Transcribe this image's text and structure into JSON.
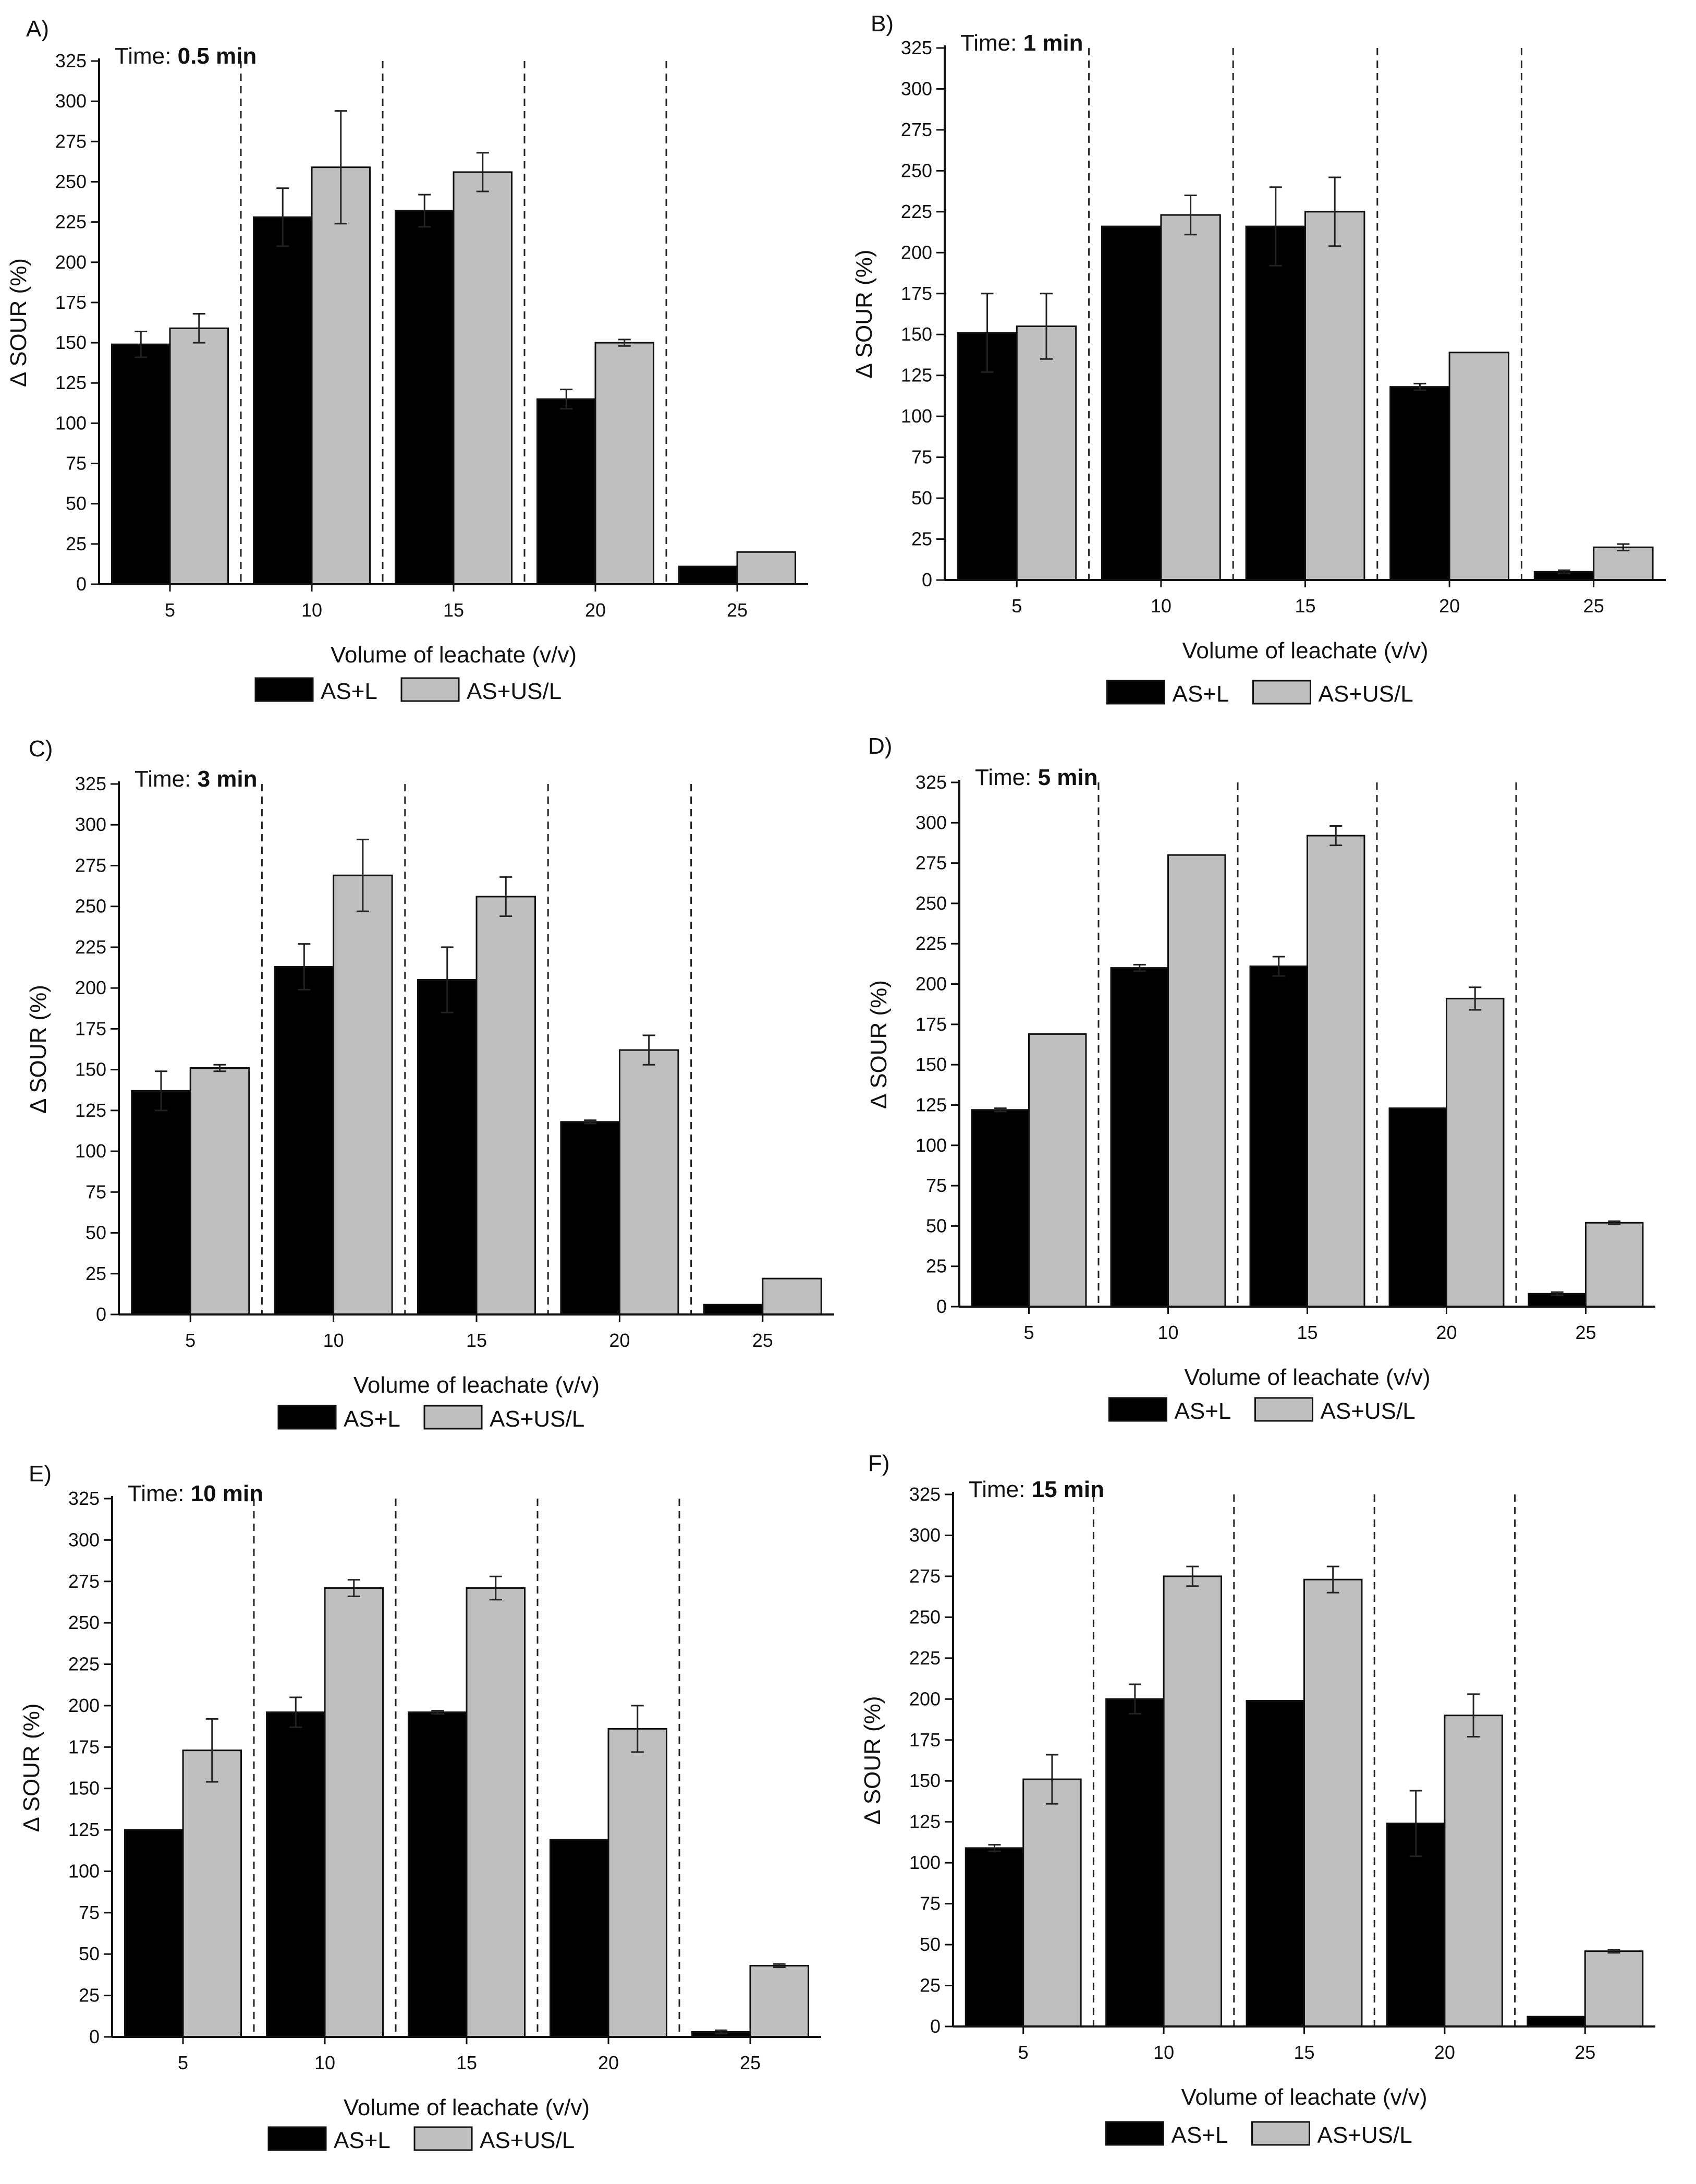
{
  "figure": {
    "ylabel": "Δ SOUR (%)",
    "xlabel": "Volume of leachate (v/v)",
    "legend": {
      "series1": "AS+L",
      "series2": "AS+US/L"
    },
    "colors": {
      "series1": "#000000",
      "series2": "#bfbfbf",
      "axis": "#111111"
    },
    "time_prefix": "Time: ",
    "yticks": [
      "0",
      "25",
      "50",
      "75",
      "100",
      "125",
      "150",
      "175",
      "200",
      "225",
      "250",
      "275",
      "300",
      "325"
    ]
  },
  "chart_data": [
    {
      "type": "bar",
      "panel": "A)",
      "time": "0.5 min",
      "title": "Time: 0.5 min",
      "xlabel": "Volume of leachate (v/v)",
      "ylabel": "Δ SOUR (%)",
      "ylim": [
        0,
        325
      ],
      "categories": [
        "5",
        "10",
        "15",
        "20",
        "25"
      ],
      "series": [
        {
          "name": "AS+L",
          "values": [
            149,
            228,
            232,
            115,
            11
          ],
          "errors": [
            8,
            18,
            10,
            6,
            0
          ]
        },
        {
          "name": "AS+US/L",
          "values": [
            159,
            259,
            256,
            150,
            20
          ],
          "errors": [
            9,
            35,
            12,
            2,
            0
          ]
        }
      ]
    },
    {
      "type": "bar",
      "panel": "B)",
      "time": "1 min",
      "title": "Time: 1 min",
      "xlabel": "Volume of leachate (v/v)",
      "ylabel": "Δ SOUR (%)",
      "ylim": [
        0,
        325
      ],
      "categories": [
        "5",
        "10",
        "15",
        "20",
        "25"
      ],
      "series": [
        {
          "name": "AS+L",
          "values": [
            151,
            216,
            216,
            118,
            5
          ],
          "errors": [
            24,
            0,
            24,
            2,
            1
          ]
        },
        {
          "name": "AS+US/L",
          "values": [
            155,
            223,
            225,
            139,
            20
          ],
          "errors": [
            20,
            12,
            21,
            0,
            2
          ]
        }
      ]
    },
    {
      "type": "bar",
      "panel": "C)",
      "time": "3 min",
      "title": "Time: 3 min",
      "xlabel": "Volume of leachate (v/v)",
      "ylabel": "Δ SOUR (%)",
      "ylim": [
        0,
        325
      ],
      "categories": [
        "5",
        "10",
        "15",
        "20",
        "25"
      ],
      "series": [
        {
          "name": "AS+L",
          "values": [
            137,
            213,
            205,
            118,
            6
          ],
          "errors": [
            12,
            14,
            20,
            1,
            0
          ]
        },
        {
          "name": "AS+US/L",
          "values": [
            151,
            269,
            256,
            162,
            22
          ],
          "errors": [
            2,
            22,
            12,
            9,
            0
          ]
        }
      ]
    },
    {
      "type": "bar",
      "panel": "D)",
      "time": "5 min",
      "title": "Time: 5 min",
      "xlabel": "Volume of leachate (v/v)",
      "ylabel": "Δ SOUR (%)",
      "ylim": [
        0,
        325
      ],
      "categories": [
        "5",
        "10",
        "15",
        "20",
        "25"
      ],
      "series": [
        {
          "name": "AS+L",
          "values": [
            122,
            210,
            211,
            123,
            8
          ],
          "errors": [
            1,
            2,
            6,
            0,
            1
          ]
        },
        {
          "name": "AS+US/L",
          "values": [
            169,
            280,
            292,
            191,
            52
          ],
          "errors": [
            0,
            0,
            6,
            7,
            1
          ]
        }
      ]
    },
    {
      "type": "bar",
      "panel": "E)",
      "time": "10 min",
      "title": "Time: 10 min",
      "xlabel": "Volume of leachate (v/v)",
      "ylabel": "Δ SOUR (%)",
      "ylim": [
        0,
        325
      ],
      "categories": [
        "5",
        "10",
        "15",
        "20",
        "25"
      ],
      "series": [
        {
          "name": "AS+L",
          "values": [
            125,
            196,
            196,
            119,
            3
          ],
          "errors": [
            0,
            9,
            1,
            0,
            1
          ]
        },
        {
          "name": "AS+US/L",
          "values": [
            173,
            271,
            271,
            186,
            43
          ],
          "errors": [
            19,
            5,
            7,
            14,
            1
          ]
        }
      ]
    },
    {
      "type": "bar",
      "panel": "F)",
      "time": "15 min",
      "title": "Time: 15 min",
      "xlabel": "Volume of leachate (v/v)",
      "ylabel": "Δ SOUR (%)",
      "ylim": [
        0,
        325
      ],
      "categories": [
        "5",
        "10",
        "15",
        "20",
        "25"
      ],
      "series": [
        {
          "name": "AS+L",
          "values": [
            109,
            200,
            199,
            124,
            6
          ],
          "errors": [
            2,
            9,
            0,
            20,
            0
          ]
        },
        {
          "name": "AS+US/L",
          "values": [
            151,
            275,
            273,
            190,
            46
          ],
          "errors": [
            15,
            6,
            8,
            13,
            1
          ]
        }
      ]
    }
  ]
}
